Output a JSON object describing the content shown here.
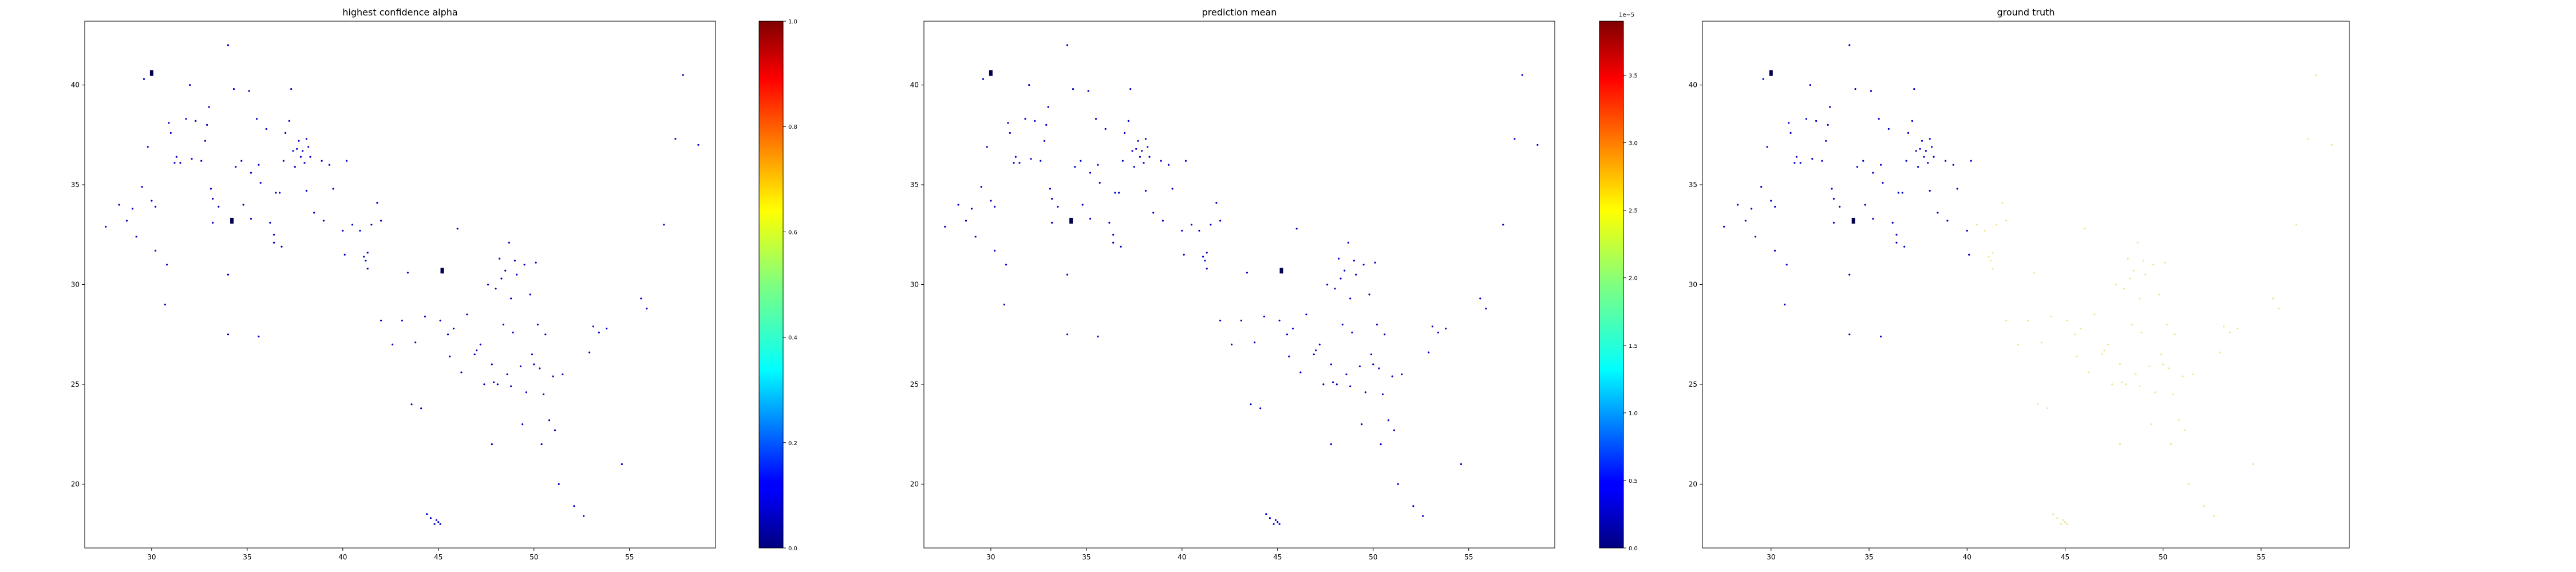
{
  "chart_data": [
    {
      "type": "scatter",
      "title": "highest confidence alpha",
      "xlabel": "",
      "ylabel": "",
      "xlim": [
        26.5,
        59.5
      ],
      "ylim": [
        16.8,
        43.2
      ],
      "xticks": [
        "30",
        "35",
        "40",
        "45",
        "50",
        "55"
      ],
      "yticks": [
        "20",
        "25",
        "30",
        "35",
        "40"
      ],
      "colormap": "jet",
      "point_color": "#0000cc",
      "highlight_color": "#000050",
      "colorbar": {
        "range": [
          0.0,
          1.0
        ],
        "ticks": [
          "0.0",
          "0.2",
          "0.4",
          "0.6",
          "0.8",
          "1.0"
        ],
        "offset_label": ""
      },
      "highlights": [
        [
          30.0,
          40.6
        ],
        [
          45.2,
          30.7
        ],
        [
          34.2,
          33.2
        ]
      ]
    },
    {
      "type": "scatter",
      "title": "prediction mean",
      "xlabel": "",
      "ylabel": "",
      "xlim": [
        26.5,
        59.5
      ],
      "ylim": [
        16.8,
        43.2
      ],
      "xticks": [
        "30",
        "35",
        "40",
        "45",
        "50",
        "55"
      ],
      "yticks": [
        "20",
        "25",
        "30",
        "35",
        "40"
      ],
      "colormap": "jet",
      "point_color": "#0000cc",
      "highlight_color": "#000050",
      "colorbar": {
        "range": [
          0.0,
          3.9
        ],
        "ticks": [
          "0.0",
          "0.5",
          "1.0",
          "1.5",
          "2.0",
          "2.5",
          "3.0",
          "3.5"
        ],
        "offset_label": "1e−5"
      },
      "highlights": [
        [
          30.0,
          40.6
        ],
        [
          45.2,
          30.7
        ],
        [
          34.2,
          33.2
        ]
      ]
    },
    {
      "type": "scatter",
      "title": "ground truth",
      "xlabel": "",
      "ylabel": "",
      "xlim": [
        26.5,
        59.5
      ],
      "ylim": [
        16.8,
        43.2
      ],
      "xticks": [
        "30",
        "35",
        "40",
        "45",
        "50",
        "55"
      ],
      "yticks": [
        "20",
        "25",
        "30",
        "35",
        "40"
      ],
      "colormap": "jet",
      "point_color": "#0000cc",
      "faint_color": "#f0e68c",
      "faint_region_x_min": 40.5,
      "highlight_color": "#000050",
      "highlights": [
        [
          30.0,
          40.6
        ],
        [
          34.2,
          33.2
        ]
      ]
    }
  ],
  "points": [
    [
      27.6,
      32.9
    ],
    [
      28.3,
      34.0
    ],
    [
      28.7,
      33.2
    ],
    [
      29.0,
      33.8
    ],
    [
      29.2,
      32.4
    ],
    [
      29.5,
      34.9
    ],
    [
      29.6,
      40.3
    ],
    [
      29.8,
      36.9
    ],
    [
      30.0,
      34.2
    ],
    [
      30.2,
      33.9
    ],
    [
      30.2,
      31.7
    ],
    [
      30.7,
      29.0
    ],
    [
      30.8,
      31.0
    ],
    [
      30.9,
      38.1
    ],
    [
      31.0,
      37.6
    ],
    [
      31.2,
      36.1
    ],
    [
      31.3,
      36.4
    ],
    [
      31.5,
      36.1
    ],
    [
      31.8,
      38.3
    ],
    [
      32.0,
      40.0
    ],
    [
      32.1,
      36.3
    ],
    [
      32.3,
      38.2
    ],
    [
      32.6,
      36.2
    ],
    [
      32.8,
      37.2
    ],
    [
      32.9,
      38.0
    ],
    [
      33.0,
      38.9
    ],
    [
      33.1,
      34.8
    ],
    [
      33.2,
      34.3
    ],
    [
      33.5,
      33.9
    ],
    [
      33.2,
      33.1
    ],
    [
      34.0,
      42.0
    ],
    [
      34.0,
      27.5
    ],
    [
      34.0,
      30.5
    ],
    [
      34.3,
      39.8
    ],
    [
      34.4,
      35.9
    ],
    [
      34.7,
      36.2
    ],
    [
      34.8,
      34.0
    ],
    [
      35.1,
      39.7
    ],
    [
      35.2,
      35.6
    ],
    [
      35.2,
      33.3
    ],
    [
      35.5,
      38.3
    ],
    [
      35.6,
      36.0
    ],
    [
      35.6,
      27.4
    ],
    [
      35.7,
      35.1
    ],
    [
      36.0,
      37.8
    ],
    [
      36.2,
      33.1
    ],
    [
      36.4,
      32.1
    ],
    [
      36.4,
      32.5
    ],
    [
      36.5,
      34.6
    ],
    [
      36.7,
      34.6
    ],
    [
      36.8,
      31.9
    ],
    [
      36.9,
      36.2
    ],
    [
      37.0,
      37.6
    ],
    [
      37.2,
      38.2
    ],
    [
      37.3,
      39.8
    ],
    [
      37.4,
      36.7
    ],
    [
      37.5,
      35.9
    ],
    [
      37.6,
      36.8
    ],
    [
      37.7,
      37.2
    ],
    [
      37.8,
      36.4
    ],
    [
      37.9,
      36.7
    ],
    [
      38.0,
      36.1
    ],
    [
      38.1,
      37.3
    ],
    [
      38.2,
      36.9
    ],
    [
      38.3,
      36.4
    ],
    [
      38.1,
      34.7
    ],
    [
      38.5,
      33.6
    ],
    [
      38.9,
      36.2
    ],
    [
      39.0,
      33.2
    ],
    [
      39.3,
      36.0
    ],
    [
      39.5,
      34.8
    ],
    [
      40.0,
      32.7
    ],
    [
      40.2,
      36.2
    ],
    [
      40.1,
      31.5
    ],
    [
      40.5,
      33.0
    ],
    [
      40.9,
      32.7
    ],
    [
      41.1,
      31.4
    ],
    [
      41.2,
      31.2
    ],
    [
      41.3,
      30.8
    ],
    [
      41.3,
      31.6
    ],
    [
      41.5,
      33.0
    ],
    [
      41.8,
      34.1
    ],
    [
      42.0,
      33.2
    ],
    [
      42.0,
      28.2
    ],
    [
      42.6,
      27.0
    ],
    [
      43.1,
      28.2
    ],
    [
      43.4,
      30.6
    ],
    [
      43.6,
      24.0
    ],
    [
      43.8,
      27.1
    ],
    [
      44.1,
      23.8
    ],
    [
      44.3,
      28.4
    ],
    [
      44.4,
      18.5
    ],
    [
      44.6,
      18.3
    ],
    [
      44.8,
      18.0
    ],
    [
      44.9,
      18.2
    ],
    [
      45.0,
      18.1
    ],
    [
      45.1,
      18.0
    ],
    [
      45.1,
      28.2
    ],
    [
      45.5,
      27.5
    ],
    [
      45.6,
      26.4
    ],
    [
      45.8,
      27.8
    ],
    [
      46.0,
      32.8
    ],
    [
      46.2,
      25.6
    ],
    [
      46.5,
      28.5
    ],
    [
      46.9,
      26.5
    ],
    [
      47.0,
      26.7
    ],
    [
      47.2,
      27.0
    ],
    [
      47.4,
      25.0
    ],
    [
      47.6,
      30.0
    ],
    [
      47.8,
      26.0
    ],
    [
      47.8,
      22.0
    ],
    [
      47.9,
      25.1
    ],
    [
      48.0,
      29.8
    ],
    [
      48.1,
      25.0
    ],
    [
      48.2,
      31.3
    ],
    [
      48.3,
      30.3
    ],
    [
      48.4,
      28.0
    ],
    [
      48.5,
      30.7
    ],
    [
      48.6,
      25.5
    ],
    [
      48.7,
      32.1
    ],
    [
      48.8,
      24.9
    ],
    [
      48.8,
      29.3
    ],
    [
      48.9,
      27.6
    ],
    [
      49.0,
      31.2
    ],
    [
      49.1,
      30.5
    ],
    [
      49.3,
      25.9
    ],
    [
      49.4,
      23.0
    ],
    [
      49.5,
      31.0
    ],
    [
      49.6,
      24.6
    ],
    [
      49.8,
      29.5
    ],
    [
      49.9,
      26.5
    ],
    [
      50.0,
      26.0
    ],
    [
      50.1,
      31.1
    ],
    [
      50.2,
      28.0
    ],
    [
      50.3,
      25.8
    ],
    [
      50.4,
      22.0
    ],
    [
      50.5,
      24.5
    ],
    [
      50.6,
      27.5
    ],
    [
      50.8,
      23.2
    ],
    [
      51.0,
      25.4
    ],
    [
      51.1,
      22.7
    ],
    [
      51.3,
      20.0
    ],
    [
      51.5,
      25.5
    ],
    [
      52.1,
      18.9
    ],
    [
      52.6,
      18.4
    ],
    [
      52.9,
      26.6
    ],
    [
      53.1,
      27.9
    ],
    [
      53.4,
      27.6
    ],
    [
      53.8,
      27.8
    ],
    [
      54.6,
      21.0
    ],
    [
      55.6,
      29.3
    ],
    [
      55.9,
      28.8
    ],
    [
      56.8,
      33.0
    ],
    [
      57.4,
      37.3
    ],
    [
      57.8,
      40.5
    ],
    [
      58.6,
      37.0
    ]
  ]
}
